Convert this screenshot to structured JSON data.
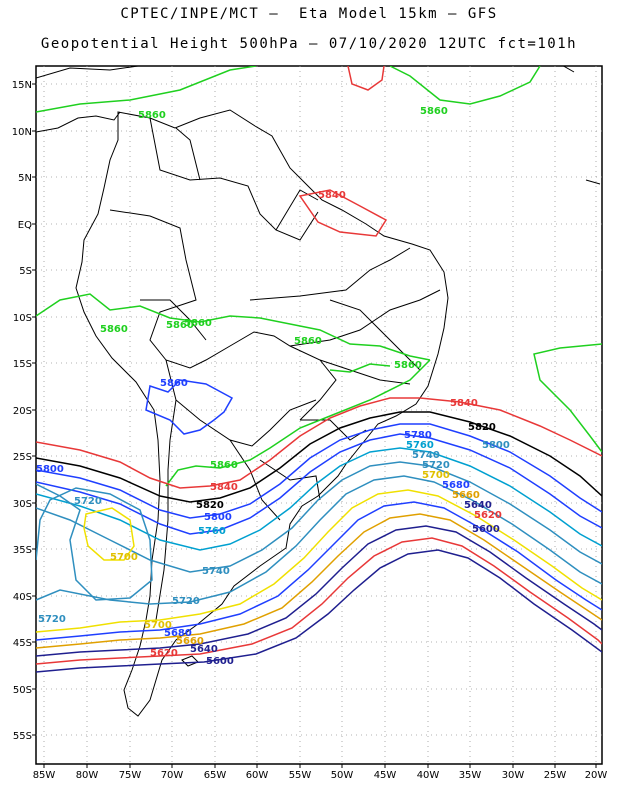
{
  "title": {
    "line1": "CPTEC/INPE/MCT –  Eta Model 15km – GFS",
    "line2": "Geopotential Height 500hPa – 07/10/2020 12UTC fct=101h"
  },
  "axes": {
    "lat_labels": [
      "15N",
      "10N",
      "5N",
      "EQ",
      "5S",
      "10S",
      "15S",
      "20S",
      "25S",
      "30S",
      "35S",
      "40S",
      "45S",
      "50S",
      "55S"
    ],
    "lon_labels": [
      "85W",
      "80W",
      "75W",
      "70W",
      "65W",
      "60W",
      "55W",
      "50W",
      "45W",
      "40W",
      "35W",
      "30W",
      "25W",
      "20W"
    ]
  },
  "contours": [
    {
      "value": "5860",
      "color": "#1fd01f",
      "labels": [
        "5860",
        "5860",
        "5860",
        "5860",
        "5860",
        "5860",
        "5860",
        "5860"
      ]
    },
    {
      "value": "5860",
      "color": "#1f3fff",
      "labels": [
        "5860"
      ]
    },
    {
      "value": "5840",
      "color": "#e83838",
      "labels": [
        "5840",
        "5840",
        "5840"
      ]
    },
    {
      "value": "5820",
      "color": "#000000",
      "labels": [
        "5820",
        "5820"
      ]
    },
    {
      "value": "5800",
      "color": "#1f3fff",
      "labels": [
        "5800",
        "5800",
        "5800"
      ]
    },
    {
      "value": "5780",
      "color": "#1f3fff",
      "labels": [
        "5780"
      ]
    },
    {
      "value": "5760",
      "color": "#00a0d0",
      "labels": [
        "5760",
        "5760"
      ]
    },
    {
      "value": "5740",
      "color": "#2f8fbf",
      "labels": [
        "5740",
        "5740"
      ]
    },
    {
      "value": "5720",
      "color": "#2f8fbf",
      "labels": [
        "5720",
        "5720",
        "5720",
        "5720"
      ]
    },
    {
      "value": "5700",
      "color": "#f0e000",
      "labels": [
        "5700",
        "5700",
        "5700"
      ]
    },
    {
      "value": "5680",
      "color": "#1f3fff",
      "labels": [
        "5680",
        "5680"
      ]
    },
    {
      "value": "5660",
      "color": "#e0a000",
      "labels": [
        "5660",
        "5660"
      ]
    },
    {
      "value": "5640",
      "color": "#1f1f8f",
      "labels": [
        "5640",
        "5640"
      ]
    },
    {
      "value": "5620",
      "color": "#e83838",
      "labels": [
        "5620",
        "5620"
      ]
    },
    {
      "value": "5600",
      "color": "#1f1f8f",
      "labels": [
        "5600",
        "5600"
      ]
    }
  ]
}
